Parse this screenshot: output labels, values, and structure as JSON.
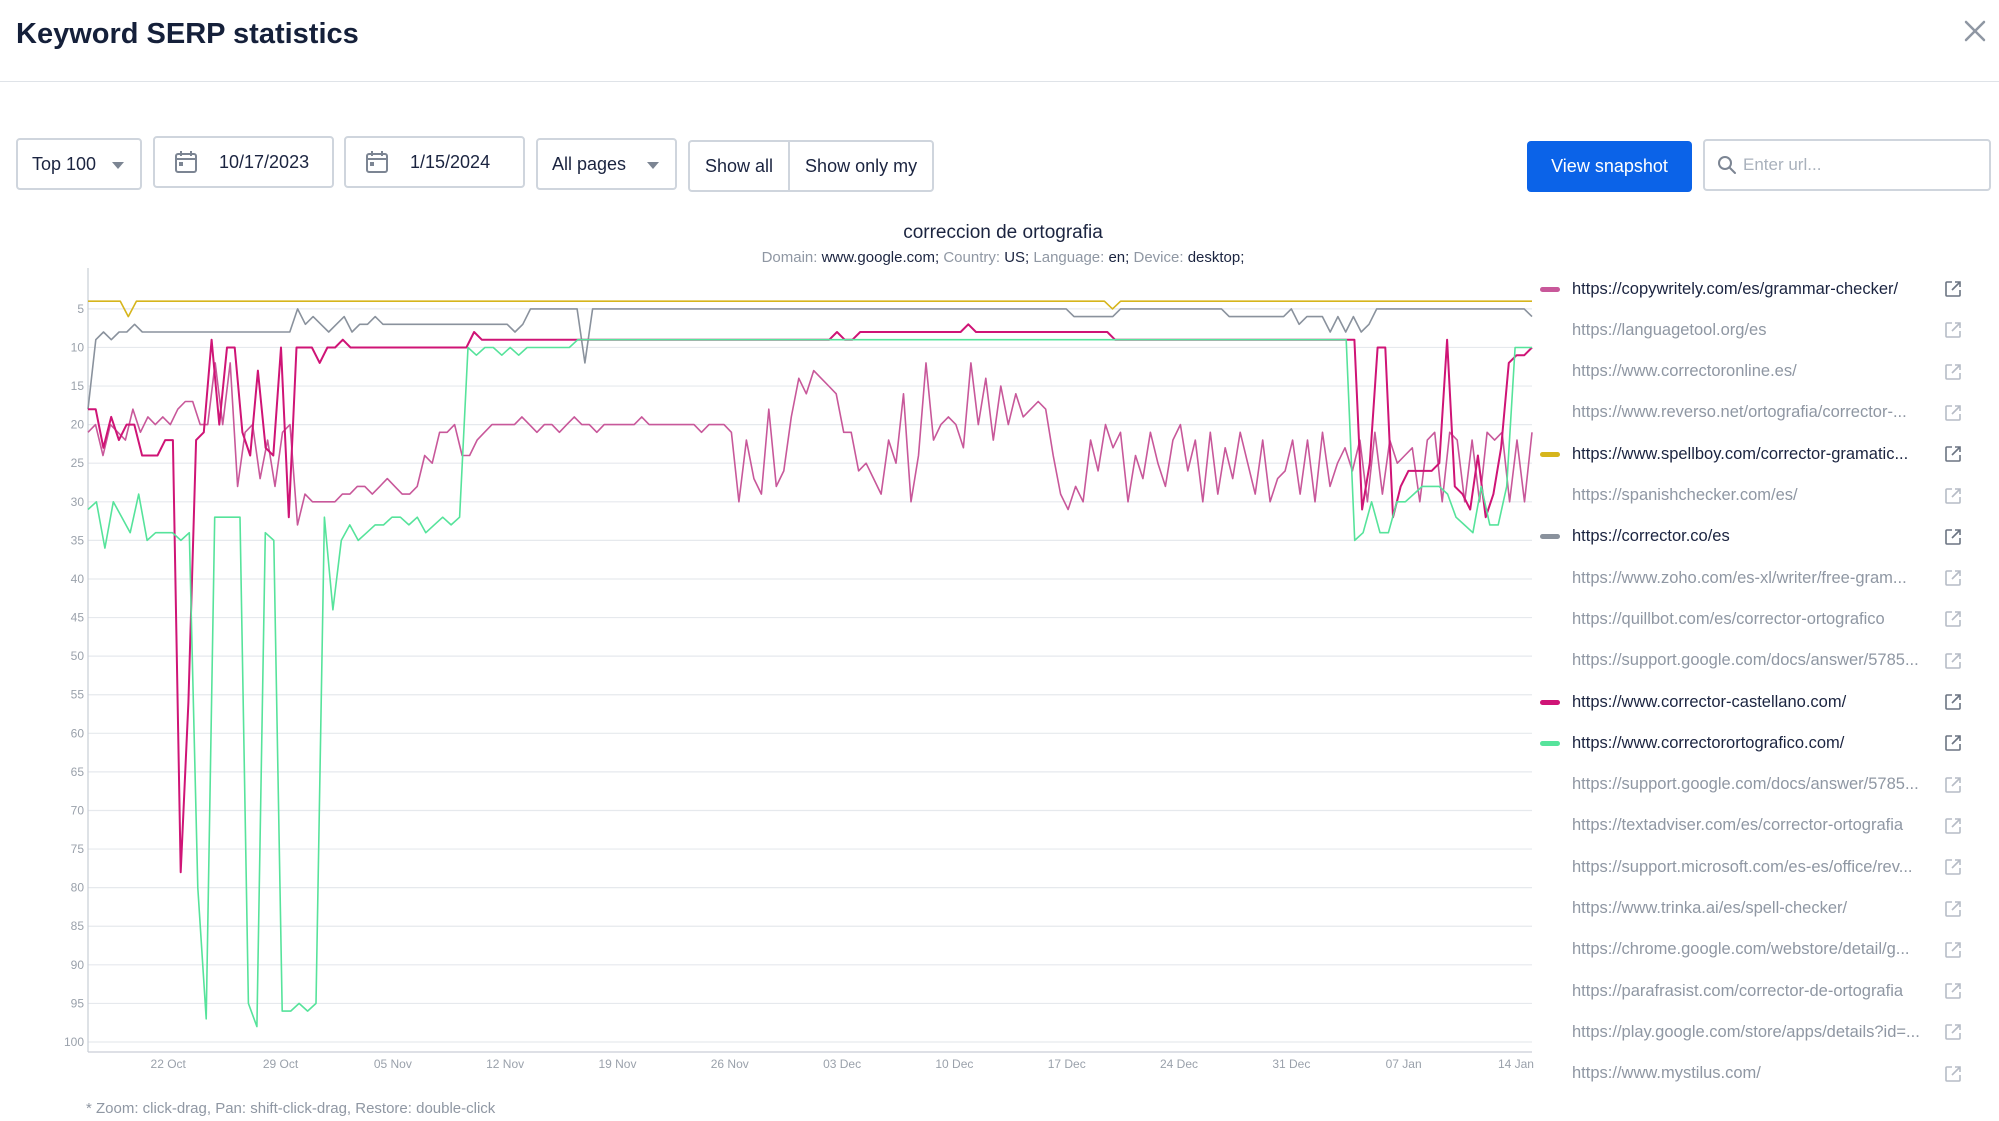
{
  "dialog": {
    "title": "Keyword SERP statistics"
  },
  "controls": {
    "top_select": "Top 100",
    "date_from": "10/17/2023",
    "date_to": "1/15/2024",
    "pages_select": "All pages",
    "show_all": "Show all",
    "show_only_my": "Show only my",
    "view_snapshot": "View snapshot",
    "url_placeholder": "Enter url..."
  },
  "chart_header": {
    "title": "correccion de ortografia",
    "domain_label": "Domain:",
    "domain": "www.google.com;",
    "country_label": "Country:",
    "country": "US;",
    "language_label": "Language:",
    "language": "en;",
    "device_label": "Device:",
    "device": "desktop;"
  },
  "footnote": "* Zoom: click-drag, Pan: shift-click-drag, Restore: double-click",
  "colors": {
    "accent": "#0b63e8",
    "grid": "#e6e9ed",
    "axis_text": "#9aa1ab"
  },
  "legend": [
    {
      "label": "https://copywritely.com/es/grammar-checker/",
      "color": "#c8589a",
      "active": true
    },
    {
      "label": "https://languagetool.org/es",
      "color": "",
      "active": false
    },
    {
      "label": "https://www.correctoronline.es/",
      "color": "",
      "active": false
    },
    {
      "label": "https://www.reverso.net/ortografia/corrector-...",
      "color": "",
      "active": false
    },
    {
      "label": "https://www.spellboy.com/corrector-gramatic...",
      "color": "#d6b51c",
      "active": true
    },
    {
      "label": "https://spanishchecker.com/es/",
      "color": "",
      "active": false
    },
    {
      "label": "https://corrector.co/es",
      "color": "#8a929d",
      "active": true
    },
    {
      "label": "https://www.zoho.com/es-xl/writer/free-gram...",
      "color": "",
      "active": false
    },
    {
      "label": "https://quillbot.com/es/corrector-ortografico",
      "color": "",
      "active": false
    },
    {
      "label": "https://support.google.com/docs/answer/5785...",
      "color": "",
      "active": false
    },
    {
      "label": "https://www.corrector-castellano.com/",
      "color": "#cf1476",
      "active": true
    },
    {
      "label": "https://www.correctorortografico.com/",
      "color": "#56e39b",
      "active": true
    },
    {
      "label": "https://support.google.com/docs/answer/5785...",
      "color": "",
      "active": false
    },
    {
      "label": "https://textadviser.com/es/corrector-ortografia",
      "color": "",
      "active": false
    },
    {
      "label": "https://support.microsoft.com/es-es/office/rev...",
      "color": "",
      "active": false
    },
    {
      "label": "https://www.trinka.ai/es/spell-checker/",
      "color": "",
      "active": false
    },
    {
      "label": "https://chrome.google.com/webstore/detail/g...",
      "color": "",
      "active": false
    },
    {
      "label": "https://parafrasist.com/corrector-de-ortografia",
      "color": "",
      "active": false
    },
    {
      "label": "https://play.google.com/store/apps/details?id=...",
      "color": "",
      "active": false
    },
    {
      "label": "https://www.mystilus.com/",
      "color": "",
      "active": false
    }
  ],
  "chart_data": {
    "type": "line",
    "title": "correccion de ortografia",
    "xlabel": "",
    "ylabel": "",
    "x_start": "2023-10-17",
    "x_end": "2024-01-15",
    "x_tick_labels": [
      "22 Oct",
      "29 Oct",
      "05 Nov",
      "12 Nov",
      "19 Nov",
      "26 Nov",
      "03 Dec",
      "10 Dec",
      "17 Dec",
      "24 Dec",
      "31 Dec",
      "07 Jan",
      "14 Jan"
    ],
    "y_tick_labels": [
      "5",
      "10",
      "15",
      "20",
      "25",
      "30",
      "35",
      "40",
      "45",
      "50",
      "55",
      "60",
      "65",
      "70",
      "75",
      "80",
      "85",
      "90",
      "95",
      "100"
    ],
    "y_inverted": true,
    "ylim": [
      100,
      1
    ],
    "grid": true,
    "legend_position": "right",
    "series": [
      {
        "name": "https://www.spellboy.com/corrector-gramatic...",
        "color": "#d6b51c",
        "values": [
          4,
          4,
          4,
          4,
          4,
          6,
          4,
          4,
          4,
          4,
          4,
          4,
          4,
          4,
          4,
          4,
          4,
          4,
          4,
          4,
          4,
          4,
          4,
          4,
          4,
          4,
          4,
          4,
          4,
          4,
          4,
          4,
          4,
          4,
          4,
          4,
          4,
          4,
          4,
          4,
          4,
          4,
          4,
          4,
          4,
          4,
          4,
          4,
          4,
          4,
          4,
          4,
          4,
          4,
          4,
          4,
          4,
          4,
          4,
          4,
          4,
          4,
          4,
          4,
          4,
          4,
          4,
          4,
          4,
          4,
          4,
          4,
          4,
          4,
          4,
          4,
          4,
          4,
          4,
          4,
          4,
          4,
          4,
          4,
          4,
          4,
          4,
          4,
          4,
          4,
          4,
          4,
          4,
          4,
          4,
          4,
          4,
          4,
          4,
          4,
          4,
          4,
          4,
          4,
          4,
          4,
          4,
          4,
          4,
          4,
          4,
          4,
          4,
          4,
          4,
          4,
          4,
          4,
          4,
          4,
          4,
          4,
          4,
          4,
          4,
          4,
          4,
          5,
          4,
          4,
          4,
          4,
          4,
          4,
          4,
          4,
          4,
          4,
          4,
          4,
          4,
          4,
          4,
          4,
          4,
          4,
          4,
          4,
          4,
          4,
          4,
          4,
          4,
          4,
          4,
          4,
          4,
          4,
          4,
          4,
          4,
          4,
          4,
          4,
          4,
          4,
          4,
          4,
          4,
          4,
          4,
          4,
          4,
          4,
          4,
          4,
          4,
          4,
          4,
          4
        ]
      },
      {
        "name": "https://corrector.co/es",
        "color": "#8a929d",
        "values": [
          18,
          9,
          8,
          9,
          8,
          8,
          7,
          8,
          8,
          8,
          8,
          8,
          8,
          8,
          8,
          8,
          8,
          8,
          8,
          8,
          8,
          8,
          8,
          8,
          8,
          8,
          8,
          5,
          7,
          6,
          7,
          8,
          7,
          6,
          8,
          7,
          7,
          6,
          7,
          7,
          7,
          7,
          7,
          7,
          7,
          7,
          7,
          7,
          7,
          7,
          7,
          7,
          7,
          7,
          7,
          8,
          7,
          5,
          5,
          5,
          5,
          5,
          5,
          5,
          12,
          5,
          5,
          5,
          5,
          5,
          5,
          5,
          5,
          5,
          5,
          5,
          5,
          5,
          5,
          5,
          5,
          5,
          5,
          5,
          5,
          5,
          5,
          5,
          5,
          5,
          5,
          5,
          5,
          5,
          5,
          5,
          5,
          5,
          5,
          5,
          5,
          5,
          5,
          5,
          5,
          5,
          5,
          5,
          5,
          5,
          5,
          5,
          5,
          5,
          5,
          5,
          5,
          5,
          5,
          5,
          5,
          5,
          5,
          5,
          5,
          5,
          5,
          6,
          6,
          6,
          6,
          6,
          6,
          5,
          5,
          5,
          5,
          5,
          5,
          5,
          5,
          5,
          5,
          5,
          5,
          5,
          5,
          6,
          6,
          6,
          6,
          6,
          6,
          6,
          6,
          5,
          7,
          6,
          6,
          6,
          8,
          6,
          8,
          6,
          8,
          7,
          5,
          5,
          5,
          5,
          5,
          5,
          5,
          5,
          5,
          5,
          5,
          5,
          5,
          5,
          5,
          5,
          5,
          5,
          5,
          5,
          6
        ]
      },
      {
        "name": "https://copywritely.com/es/grammar-checker/",
        "color": "#c8589a",
        "values": [
          21,
          20,
          24,
          20,
          21,
          22,
          18,
          21,
          19,
          20,
          19,
          20,
          18,
          17,
          17,
          20,
          20,
          12,
          20,
          12,
          28,
          21,
          20,
          27,
          22,
          28,
          21,
          20,
          33,
          29,
          30,
          30,
          30,
          30,
          29,
          29,
          28,
          28,
          29,
          28,
          27,
          28,
          29,
          29,
          28,
          24,
          25,
          21,
          21,
          20,
          24,
          24,
          22,
          21,
          20,
          20,
          20,
          20,
          19,
          20,
          21,
          20,
          20,
          21,
          20,
          19,
          20,
          20,
          21,
          20,
          20,
          20,
          20,
          20,
          19,
          20,
          20,
          20,
          20,
          20,
          20,
          20,
          21,
          20,
          20,
          20,
          21,
          30,
          22,
          27,
          29,
          18,
          28,
          26,
          19,
          14,
          16,
          13,
          14,
          15,
          16,
          21,
          21,
          26,
          25,
          27,
          29,
          22,
          25,
          16,
          30,
          24,
          12,
          22,
          20,
          19,
          20,
          23,
          12,
          20,
          14,
          22,
          15,
          20,
          16,
          19,
          18,
          17,
          18,
          24,
          29,
          31,
          28,
          30,
          22,
          26,
          20,
          23,
          21,
          30,
          24,
          27,
          21,
          25,
          28,
          22,
          20,
          26,
          22,
          30,
          21,
          29,
          23,
          27,
          21,
          25,
          29,
          22,
          30,
          27,
          26,
          22,
          29,
          22,
          30,
          21,
          28,
          25,
          23,
          26,
          22,
          30,
          21,
          29,
          22,
          25,
          24,
          23,
          30,
          22,
          21,
          30,
          21,
          22,
          30,
          22,
          30,
          21,
          22,
          21,
          30,
          22,
          30,
          21
        ]
      },
      {
        "name": "https://www.corrector-castellano.com/",
        "color": "#cf1476",
        "values": [
          18,
          18,
          23,
          19,
          22,
          20,
          20,
          24,
          24,
          24,
          22,
          22,
          78,
          56,
          22,
          21,
          9,
          20,
          10,
          10,
          21,
          24,
          13,
          23,
          24,
          10,
          32,
          10,
          10,
          10,
          12,
          10,
          10,
          9,
          10,
          10,
          10,
          10,
          10,
          10,
          10,
          10,
          10,
          10,
          10,
          10,
          10,
          10,
          10,
          10,
          8,
          9,
          9,
          9,
          9,
          9,
          9,
          9,
          9,
          9,
          9,
          9,
          9,
          9,
          9,
          9,
          9,
          9,
          9,
          9,
          9,
          9,
          9,
          9,
          9,
          9,
          9,
          9,
          9,
          9,
          9,
          9,
          9,
          9,
          9,
          9,
          9,
          9,
          9,
          9,
          9,
          9,
          9,
          9,
          9,
          9,
          9,
          8,
          9,
          9,
          8,
          8,
          8,
          8,
          8,
          8,
          8,
          8,
          8,
          8,
          8,
          8,
          8,
          8,
          7,
          8,
          8,
          8,
          8,
          8,
          8,
          8,
          8,
          8,
          8,
          8,
          8,
          8,
          8,
          8,
          8,
          8,
          8,
          9,
          9,
          9,
          9,
          9,
          9,
          9,
          9,
          9,
          9,
          9,
          9,
          9,
          9,
          9,
          9,
          9,
          9,
          9,
          9,
          9,
          9,
          9,
          9,
          9,
          9,
          9,
          9,
          9,
          9,
          9,
          9,
          31,
          25,
          10,
          10,
          32,
          28,
          26,
          26,
          26,
          26,
          25,
          9,
          28,
          29,
          31,
          24,
          32,
          29,
          23,
          12,
          11,
          11,
          10
        ]
      },
      {
        "name": "https://www.correctorortografico.com/",
        "color": "#56e39b",
        "values": [
          31,
          30,
          36,
          30,
          32,
          34,
          29,
          35,
          34,
          34,
          34,
          35,
          34,
          80,
          97,
          32,
          32,
          32,
          32,
          95,
          98,
          34,
          35,
          96,
          96,
          95,
          96,
          95,
          32,
          44,
          35,
          33,
          35,
          34,
          33,
          33,
          32,
          32,
          33,
          32,
          34,
          33,
          32,
          33,
          32,
          10,
          11,
          10,
          10,
          11,
          10,
          11,
          10,
          10,
          10,
          10,
          10,
          10,
          9,
          9,
          9,
          9,
          9,
          9,
          9,
          9,
          9,
          9,
          9,
          9,
          9,
          9,
          9,
          9,
          9,
          9,
          9,
          9,
          9,
          9,
          9,
          9,
          9,
          9,
          9,
          9,
          9,
          9,
          9,
          9,
          9,
          9,
          9,
          9,
          9,
          9,
          9,
          9,
          9,
          9,
          9,
          9,
          9,
          9,
          9,
          9,
          9,
          9,
          9,
          9,
          9,
          9,
          9,
          9,
          9,
          9,
          9,
          9,
          9,
          9,
          9,
          9,
          9,
          9,
          9,
          9,
          9,
          9,
          9,
          9,
          9,
          9,
          9,
          9,
          9,
          9,
          9,
          9,
          9,
          9,
          9,
          9,
          9,
          9,
          9,
          9,
          9,
          9,
          9,
          9,
          35,
          34,
          30,
          34,
          34,
          30,
          30,
          29,
          28,
          28,
          28,
          29,
          32,
          33,
          34,
          28,
          33,
          33,
          28,
          10,
          10,
          10
        ]
      }
    ]
  }
}
